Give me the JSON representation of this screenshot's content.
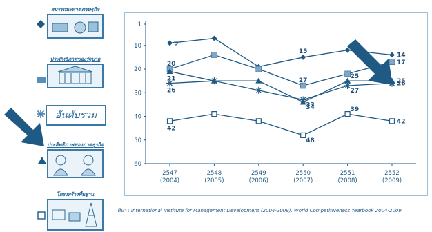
{
  "legend": {
    "economic": "สมรรถนะทางเศรษฐกิจ",
    "government": "ประสิทธิภาพของรัฐบาล",
    "overall": "อันดับรวม",
    "business": "ประสิทธิภาพของภาคธุรกิจ",
    "infrastructure": "โครงสร้างพื้นฐาน"
  },
  "source_note": "ที่มา : International Institute for Management Development (2004-2009). World Competitiveness Yearbook 2004-2009",
  "colors": {
    "line": "#1f5a85",
    "panel_border": "#9fbfd6",
    "arrow": "#1f5a85",
    "grid": "#cfe0ec"
  },
  "chart_data": {
    "type": "line",
    "x_labels": [
      [
        "2547",
        "(2004)"
      ],
      [
        "2548",
        "(2005)"
      ],
      [
        "2549",
        "(2006)"
      ],
      [
        "2550",
        "(2007)"
      ],
      [
        "2551",
        "(2008)"
      ],
      [
        "2552",
        "(2009)"
      ]
    ],
    "ylim": [
      60,
      1
    ],
    "y_ticks": [
      1,
      10,
      20,
      30,
      40,
      50,
      60
    ],
    "y_inverted": true,
    "grid": false,
    "series": [
      {
        "key": "economic",
        "marker": "diamond",
        "values": [
          9,
          7,
          19,
          15,
          12,
          14
        ]
      },
      {
        "key": "government",
        "marker": "square-filled",
        "values": [
          20,
          14,
          20,
          27,
          22,
          17
        ]
      },
      {
        "key": "overall",
        "marker": "asterisk",
        "values": [
          26,
          25,
          29,
          33,
          27,
          26
        ]
      },
      {
        "key": "business",
        "marker": "triangle",
        "values": [
          21,
          25,
          25,
          34,
          25,
          25
        ]
      },
      {
        "key": "infrastructure",
        "marker": "square-open",
        "values": [
          42,
          39,
          42,
          48,
          39,
          42
        ]
      }
    ],
    "data_labels": [
      {
        "text": "9",
        "series": 0,
        "point": 0
      },
      {
        "text": "15",
        "series": 0,
        "point": 3
      },
      {
        "text": "14",
        "series": 0,
        "point": 5
      },
      {
        "text": "20",
        "series": 1,
        "point": 0
      },
      {
        "text": "27",
        "series": 1,
        "point": 3
      },
      {
        "text": "17",
        "series": 1,
        "point": 5
      },
      {
        "text": "26",
        "series": 2,
        "point": 0
      },
      {
        "text": "33",
        "series": 2,
        "point": 3
      },
      {
        "text": "27",
        "series": 2,
        "point": 4
      },
      {
        "text": "26",
        "series": 2,
        "point": 5
      },
      {
        "text": "21",
        "series": 3,
        "point": 0
      },
      {
        "text": "34",
        "series": 3,
        "point": 3
      },
      {
        "text": "25",
        "series": 3,
        "point": 4
      },
      {
        "text": "25",
        "series": 3,
        "point": 5
      },
      {
        "text": "42",
        "series": 4,
        "point": 0
      },
      {
        "text": "48",
        "series": 4,
        "point": 3
      },
      {
        "text": "39",
        "series": 4,
        "point": 4
      },
      {
        "text": "42",
        "series": 4,
        "point": 5
      }
    ]
  }
}
